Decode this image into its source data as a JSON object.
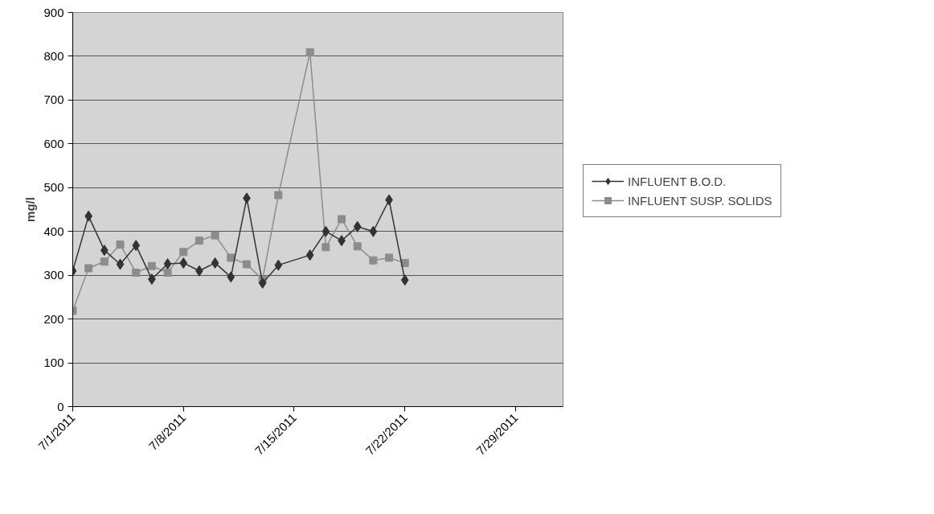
{
  "chart_data": {
    "type": "line",
    "ylabel": "mg/l",
    "x": [
      "2011-07-01",
      "2011-07-02",
      "2011-07-03",
      "2011-07-04",
      "2011-07-05",
      "2011-07-06",
      "2011-07-07",
      "2011-07-08",
      "2011-07-09",
      "2011-07-10",
      "2011-07-11",
      "2011-07-12",
      "2011-07-13",
      "2011-07-14",
      "2011-07-16",
      "2011-07-17",
      "2011-07-18",
      "2011-07-19",
      "2011-07-20",
      "2011-07-21",
      "2011-07-22"
    ],
    "series": [
      {
        "name": "INFLUENT B.O.D.",
        "color": "#333333",
        "marker": "diamond",
        "values": [
          310,
          435,
          357,
          325,
          368,
          291,
          326,
          328,
          310,
          328,
          296,
          476,
          282,
          323,
          346,
          400,
          379,
          411,
          400,
          472,
          289
        ]
      },
      {
        "name": "INFLUENT SUSP. SOLIDS",
        "color": "#8c8c8c",
        "marker": "square",
        "values": [
          219,
          316,
          331,
          370,
          306,
          321,
          306,
          353,
          379,
          391,
          340,
          325,
          290,
          483,
          809,
          364,
          428,
          366,
          334,
          340,
          328
        ]
      }
    ],
    "xlim": [
      "2011-07-01",
      "2011-08-01"
    ],
    "xticks": [
      {
        "value": "2011-07-01",
        "label": "7/1/2011"
      },
      {
        "value": "2011-07-08",
        "label": "7/8/2011"
      },
      {
        "value": "2011-07-15",
        "label": "7/15/2011"
      },
      {
        "value": "2011-07-22",
        "label": "7/22/2011"
      },
      {
        "value": "2011-07-29",
        "label": "7/29/2011"
      }
    ],
    "ylim": [
      0,
      900
    ],
    "yticks": [
      0,
      100,
      200,
      300,
      400,
      500,
      600,
      700,
      800,
      900
    ],
    "grid": "y",
    "legend": "right",
    "line_style": "solid"
  }
}
